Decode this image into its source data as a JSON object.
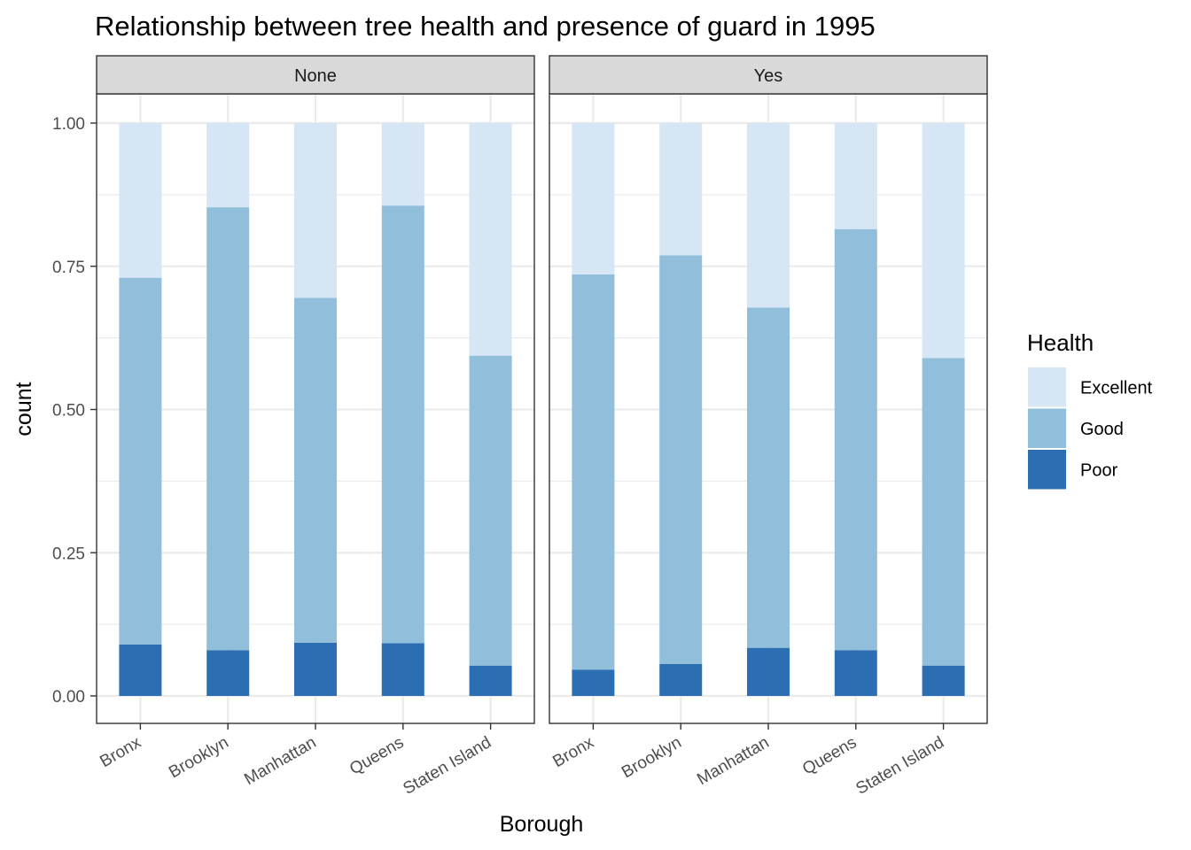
{
  "chart_data": {
    "type": "bar",
    "stacked": true,
    "position": "fill",
    "title": "Relationship between tree health and presence of guard in 1995",
    "xlabel": "Borough",
    "ylabel": "count",
    "ylim": [
      0,
      1
    ],
    "yticks": [
      "0.00",
      "0.25",
      "0.50",
      "0.75",
      "1.00"
    ],
    "categories": [
      "Bronx",
      "Brooklyn",
      "Manhattan",
      "Queens",
      "Staten Island"
    ],
    "grid": true,
    "legend": {
      "title": "Health",
      "position": "right",
      "entries": [
        "Excellent",
        "Good",
        "Poor"
      ]
    },
    "colors": {
      "Excellent": "#d6e6f4",
      "Good": "#91bedb",
      "Poor": "#2b6fb2"
    },
    "panels": [
      {
        "label": "None",
        "series": [
          {
            "name": "Poor",
            "values": [
              0.09,
              0.08,
              0.093,
              0.092,
              0.053
            ]
          },
          {
            "name": "Good",
            "values": [
              0.64,
              0.773,
              0.602,
              0.764,
              0.541
            ]
          },
          {
            "name": "Excellent",
            "values": [
              0.27,
              0.147,
              0.305,
              0.144,
              0.406
            ]
          }
        ]
      },
      {
        "label": "Yes",
        "series": [
          {
            "name": "Poor",
            "values": [
              0.046,
              0.056,
              0.084,
              0.08,
              0.053
            ]
          },
          {
            "name": "Good",
            "values": [
              0.69,
              0.713,
              0.594,
              0.735,
              0.537
            ]
          },
          {
            "name": "Excellent",
            "values": [
              0.264,
              0.231,
              0.322,
              0.185,
              0.41
            ]
          }
        ]
      }
    ]
  }
}
